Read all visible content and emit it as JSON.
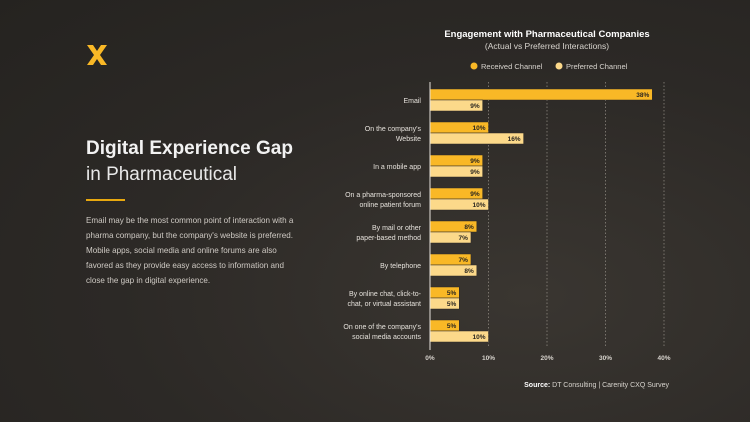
{
  "left": {
    "title": "Digital Experience Gap",
    "subtitle": "in Pharmaceutical",
    "body": "Email may be the most common point of interaction with a pharma company, but the company's website is preferred. Mobile apps, social media and online forums are also favored as they provide easy access to information and close the gap in digital experience."
  },
  "chart_data": {
    "type": "bar",
    "orientation": "horizontal",
    "title": "Engagement with Pharmaceutical Companies",
    "subtitle": "(Actual vs Preferred Interactions)",
    "categories": [
      [
        "Email"
      ],
      [
        "On the company's",
        "Website"
      ],
      [
        "In a mobile app"
      ],
      [
        "On a pharma-sponsored",
        "online patient forum"
      ],
      [
        "By mail or other",
        "paper-based method"
      ],
      [
        "By telephone"
      ],
      [
        "By online chat, click-to-",
        "chat, or virtual assistant"
      ],
      [
        "On one of the company's",
        "social media accounts"
      ]
    ],
    "series": [
      {
        "name": "Received Channel",
        "color": "#f9b826",
        "values": [
          38,
          10,
          9,
          9,
          8,
          7,
          5,
          5
        ]
      },
      {
        "name": "Preferred Channel",
        "color": "#fcd98a",
        "values": [
          9,
          16,
          9,
          10,
          7,
          8,
          5,
          10
        ]
      }
    ],
    "xlim": [
      0,
      40
    ],
    "xticks": [
      "0%",
      "10%",
      "20%",
      "30%",
      "40%"
    ],
    "tick_values": [
      0,
      10,
      20,
      30,
      40
    ],
    "grid": true,
    "legend": "top"
  },
  "source": {
    "label": "Source:",
    "text": "DT Consulting | Carenity CXQ Survey"
  }
}
